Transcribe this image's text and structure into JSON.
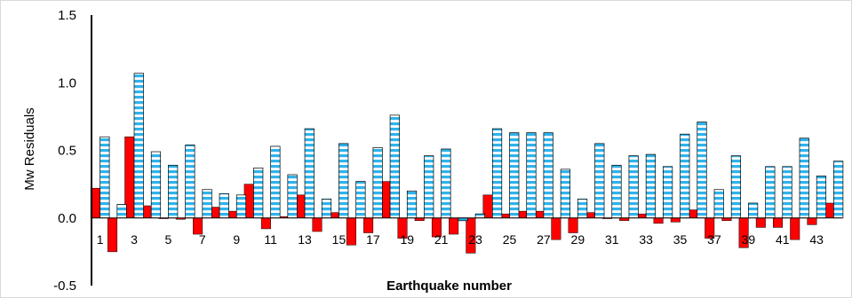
{
  "chart_data": {
    "type": "bar",
    "title": "",
    "xlabel": "Earthquake number",
    "ylabel": "Mw Residuals",
    "ylim": [
      -0.5,
      1.5
    ],
    "yticks": [
      "-0.5",
      "0.0",
      "0.5",
      "1.0",
      "1.5"
    ],
    "ytick_values": [
      -0.5,
      0.0,
      0.5,
      1.0,
      1.5
    ],
    "categories": [
      1,
      2,
      3,
      4,
      5,
      6,
      7,
      8,
      9,
      10,
      11,
      12,
      13,
      14,
      15,
      16,
      17,
      18,
      19,
      20,
      21,
      22,
      23,
      24,
      25,
      26,
      27,
      28,
      29,
      30,
      31,
      32,
      33,
      34,
      35,
      36,
      37,
      38,
      39,
      40,
      41,
      42,
      43,
      44
    ],
    "xtick_labels": [
      "1",
      "3",
      "5",
      "7",
      "9",
      "11",
      "13",
      "15",
      "17",
      "19",
      "21",
      "23",
      "25",
      "27",
      "29",
      "31",
      "33",
      "35",
      "37",
      "39",
      "41",
      "43"
    ],
    "grid": false,
    "legend": "none",
    "series": [
      {
        "color": "#ff0000",
        "pattern": "solid",
        "values": [
          0.22,
          -0.25,
          0.6,
          0.09,
          0.0,
          -0.01,
          -0.12,
          0.08,
          0.05,
          0.25,
          -0.08,
          0.01,
          0.17,
          -0.1,
          0.04,
          -0.2,
          -0.11,
          0.27,
          -0.15,
          -0.02,
          -0.14,
          -0.12,
          -0.26,
          0.17,
          0.03,
          0.05,
          0.05,
          -0.16,
          -0.11,
          0.04,
          0.0,
          -0.02,
          0.03,
          -0.04,
          -0.03,
          0.06,
          -0.15,
          -0.02,
          -0.22,
          -0.07,
          -0.07,
          -0.16,
          -0.05,
          0.11
        ]
      },
      {
        "color": "#33bbee",
        "pattern": "horizontal-stripes",
        "values": [
          0.6,
          0.1,
          1.07,
          0.49,
          0.39,
          0.54,
          0.21,
          0.18,
          0.17,
          0.37,
          0.53,
          0.32,
          0.66,
          0.14,
          0.55,
          0.27,
          0.52,
          0.76,
          0.2,
          0.46,
          0.51,
          -0.02,
          0.03,
          0.66,
          0.63,
          0.63,
          0.63,
          0.36,
          0.14,
          0.55,
          0.39,
          0.46,
          0.47,
          0.38,
          0.62,
          0.71,
          0.21,
          0.46,
          0.11,
          0.38,
          0.38,
          0.59,
          0.31,
          0.42
        ]
      }
    ]
  }
}
